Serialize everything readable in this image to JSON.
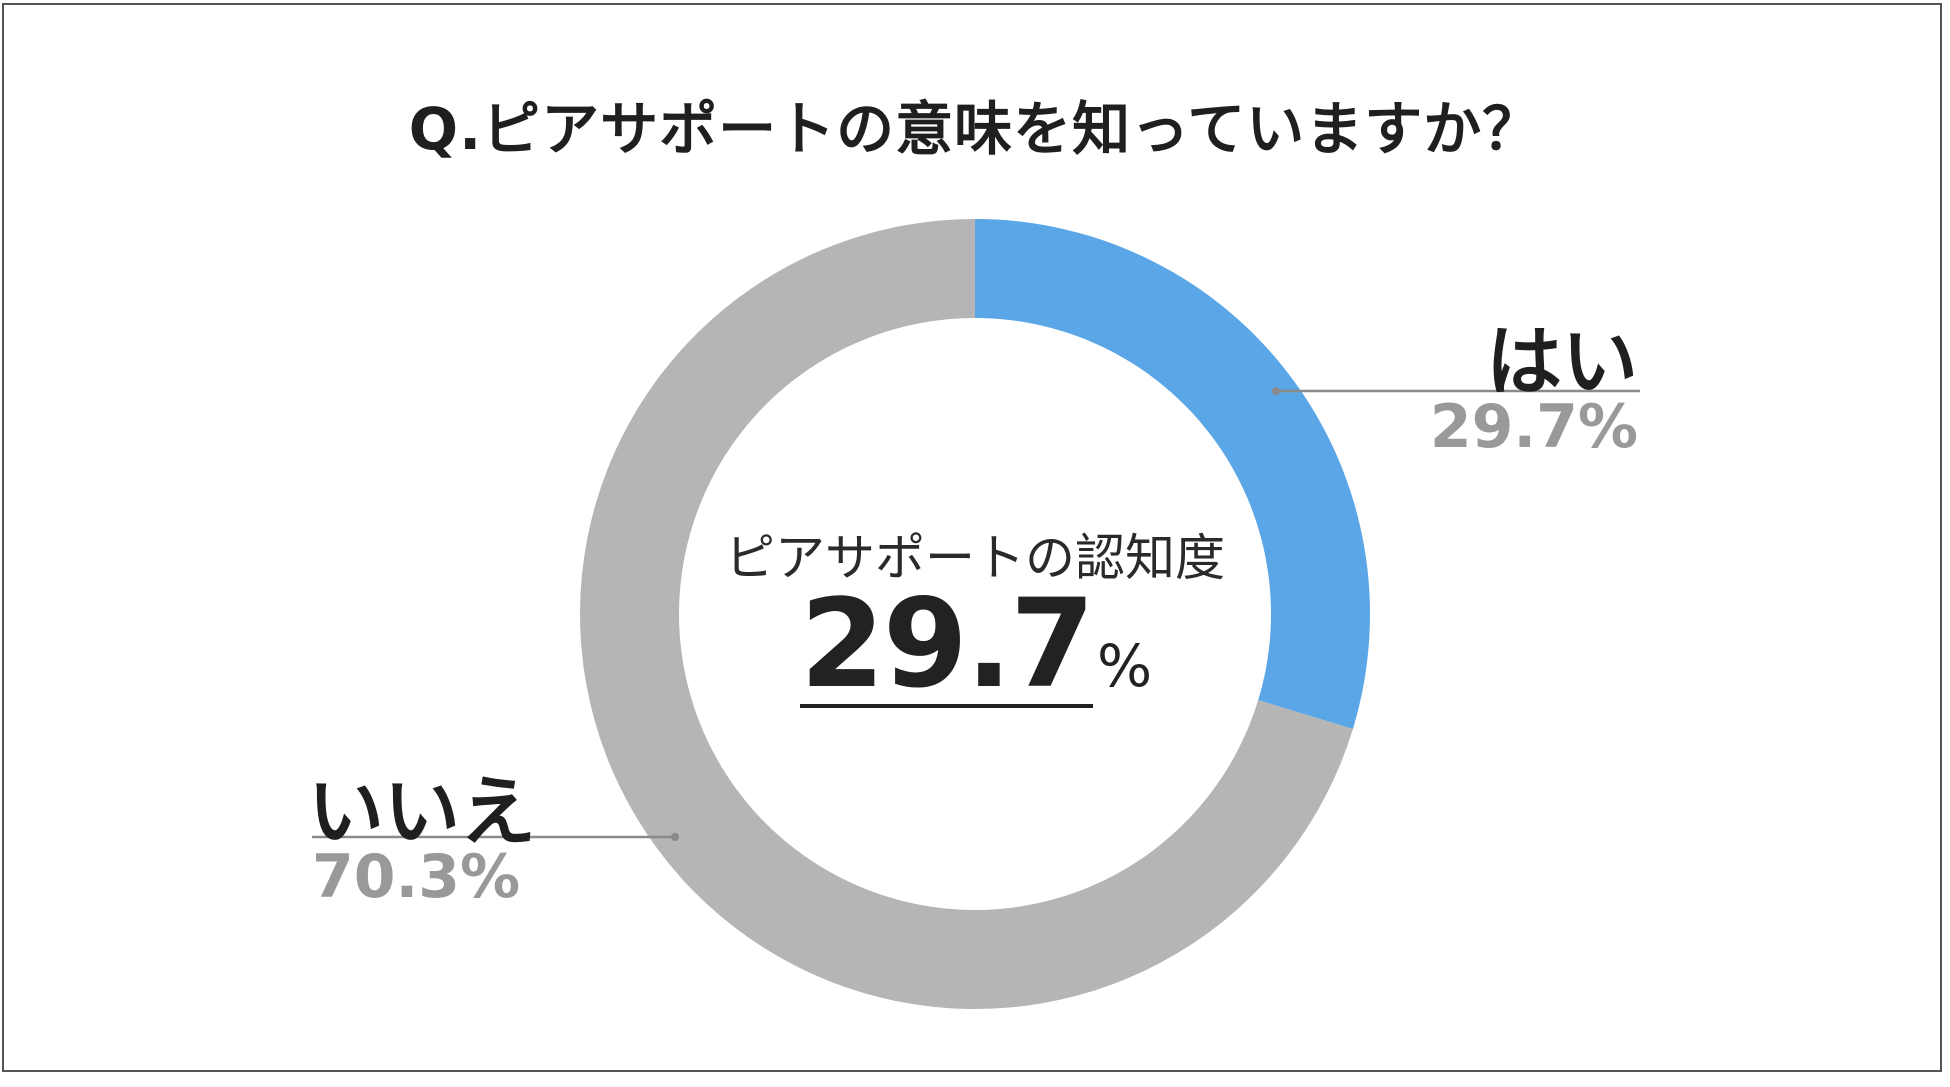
{
  "title": "Q.ピアサポートの意味を知っていますか？",
  "center": {
    "caption": "ピアサポートの認知度",
    "value": "29.7",
    "unit": "%"
  },
  "colors": {
    "yes": "#5aa6e6",
    "no": "#b5b5b5",
    "leader": "#8a8a8a"
  },
  "chart_data": {
    "type": "pie",
    "donut": true,
    "title": "Q.ピアサポートの意味を知っていますか？",
    "categories": [
      "はい",
      "いいえ"
    ],
    "values": [
      29.7,
      70.3
    ],
    "value_labels": [
      "29.7%",
      "70.3%"
    ],
    "legend": "none"
  }
}
